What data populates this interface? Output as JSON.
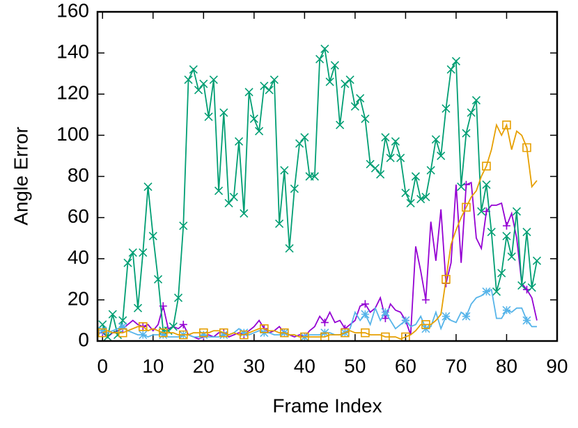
{
  "chart_data": {
    "type": "line",
    "xlabel": "Frame Index",
    "ylabel": "Angle Error",
    "x": [
      0,
      1,
      2,
      3,
      4,
      5,
      6,
      7,
      8,
      9,
      10,
      11,
      12,
      13,
      14,
      15,
      16,
      17,
      18,
      19,
      20,
      21,
      22,
      23,
      24,
      25,
      26,
      27,
      28,
      29,
      30,
      31,
      32,
      33,
      34,
      35,
      36,
      37,
      38,
      39,
      40,
      41,
      42,
      43,
      44,
      45,
      46,
      47,
      48,
      49,
      50,
      51,
      52,
      53,
      54,
      55,
      56,
      57,
      58,
      59,
      60,
      61,
      62,
      63,
      64,
      65,
      66,
      67,
      68,
      69,
      70,
      71,
      72,
      73,
      74,
      75,
      76,
      77,
      78,
      79,
      80,
      81,
      82,
      83,
      84,
      85,
      86
    ],
    "series": [
      {
        "color": "#9400d3",
        "marker": "plus",
        "point_interval": 4,
        "values": [
          4,
          2,
          4,
          5,
          6,
          8,
          10,
          8,
          7,
          8,
          5,
          8,
          17,
          6,
          7,
          6,
          8,
          3,
          2,
          1,
          2,
          3,
          2,
          4,
          4,
          2,
          3,
          4,
          3,
          5,
          7,
          10,
          6,
          4,
          5,
          7,
          4,
          3,
          2,
          3,
          2,
          5,
          7,
          12,
          9,
          14,
          9,
          10,
          6,
          8,
          10,
          17,
          18,
          14,
          16,
          21,
          11,
          18,
          15,
          14,
          10,
          3,
          46,
          34,
          20,
          58,
          39,
          64,
          28,
          38,
          76,
          38,
          76,
          77,
          50,
          45,
          63,
          66,
          66,
          67,
          56,
          62,
          50,
          28,
          25,
          21,
          10
        ]
      },
      {
        "color": "#009e73",
        "marker": "cross",
        "point_interval": 1,
        "values": [
          8,
          2,
          13,
          3,
          10,
          38,
          43,
          16,
          43,
          75,
          51,
          30,
          5,
          5,
          7,
          21,
          56,
          127,
          132,
          122,
          125,
          109,
          127,
          73,
          111,
          67,
          70,
          97,
          62,
          121,
          108,
          102,
          124,
          122,
          127,
          57,
          83,
          45,
          74,
          96,
          99,
          80,
          80,
          137,
          142,
          126,
          134,
          105,
          125,
          127,
          114,
          118,
          108,
          86,
          84,
          81,
          99,
          89,
          97,
          89,
          72,
          67,
          80,
          69,
          70,
          83,
          98,
          90,
          113,
          132,
          136,
          75,
          101,
          111,
          117,
          63,
          76,
          53,
          24,
          33,
          51,
          41,
          63,
          27,
          53,
          26,
          39
        ]
      },
      {
        "color": "#56b4e9",
        "marker": "star",
        "point_interval": 4,
        "values": [
          5,
          4,
          5,
          6,
          7,
          5,
          4,
          3,
          3,
          2,
          3,
          3,
          3,
          2,
          2,
          2,
          3,
          3,
          2,
          2,
          3,
          2,
          2,
          2,
          3,
          3,
          4,
          6,
          4,
          3,
          4,
          5,
          4,
          4,
          3,
          3,
          4,
          3,
          3,
          2,
          2,
          3,
          3,
          3,
          4,
          4,
          3,
          3,
          4,
          6,
          14,
          10,
          13,
          8,
          16,
          10,
          14,
          10,
          6,
          8,
          10,
          7,
          8,
          12,
          6,
          7,
          14,
          6,
          12,
          10,
          9,
          14,
          12,
          18,
          21,
          22,
          24,
          25,
          11,
          11,
          15,
          14,
          16,
          16,
          10,
          7,
          7
        ]
      },
      {
        "color": "#e69f00",
        "marker": "square",
        "point_interval": 4,
        "values": [
          4,
          5,
          4,
          4,
          4,
          5,
          6,
          7,
          7,
          5,
          6,
          5,
          4,
          4,
          4,
          3,
          3,
          3,
          4,
          4,
          4,
          4,
          5,
          5,
          4,
          3,
          4,
          3,
          3,
          4,
          5,
          6,
          6,
          5,
          5,
          4,
          4,
          3,
          3,
          2,
          2,
          2,
          2,
          2,
          2,
          3,
          3,
          3,
          4,
          5,
          4,
          4,
          4,
          3,
          3,
          3,
          2,
          2,
          2,
          1,
          2,
          3,
          5,
          8,
          8,
          8,
          10,
          13,
          30,
          47,
          54,
          60,
          65,
          70,
          73,
          80,
          85,
          93,
          105,
          100,
          105,
          93,
          102,
          100,
          94,
          75,
          78
        ]
      }
    ],
    "xlim": [
      -1,
      90
    ],
    "xticks": [
      0,
      10,
      20,
      30,
      40,
      50,
      60,
      70,
      80,
      90
    ],
    "ylim": [
      0,
      160
    ],
    "yticks": [
      0,
      20,
      40,
      60,
      80,
      100,
      120,
      140,
      160
    ]
  }
}
